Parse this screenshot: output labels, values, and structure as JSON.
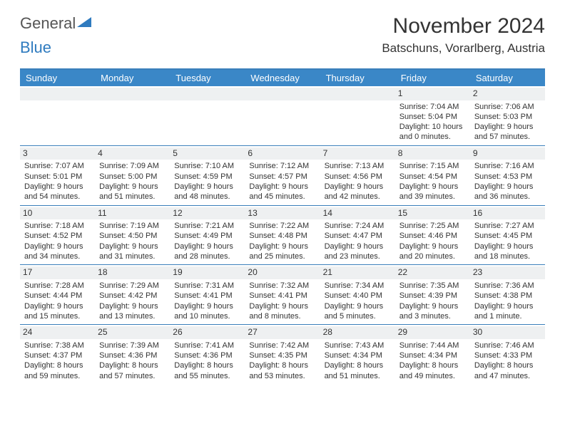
{
  "brand": {
    "part1": "General",
    "part2": "Blue"
  },
  "title": "November 2024",
  "location": "Batschuns, Vorarlberg, Austria",
  "colors": {
    "header_bg": "#3a87c7",
    "border": "#3a7fba",
    "numbar_bg": "#eef0f1",
    "text": "#333333",
    "brand_blue": "#2f7bbf"
  },
  "fonts": {
    "title_size": 30,
    "location_size": 17,
    "dayhead_size": 13,
    "cell_size": 11
  },
  "day_names": [
    "Sunday",
    "Monday",
    "Tuesday",
    "Wednesday",
    "Thursday",
    "Friday",
    "Saturday"
  ],
  "weeks": [
    [
      null,
      null,
      null,
      null,
      null,
      {
        "n": "1",
        "sunrise": "Sunrise: 7:04 AM",
        "sunset": "Sunset: 5:04 PM",
        "daylight": "Daylight: 10 hours and 0 minutes."
      },
      {
        "n": "2",
        "sunrise": "Sunrise: 7:06 AM",
        "sunset": "Sunset: 5:03 PM",
        "daylight": "Daylight: 9 hours and 57 minutes."
      }
    ],
    [
      {
        "n": "3",
        "sunrise": "Sunrise: 7:07 AM",
        "sunset": "Sunset: 5:01 PM",
        "daylight": "Daylight: 9 hours and 54 minutes."
      },
      {
        "n": "4",
        "sunrise": "Sunrise: 7:09 AM",
        "sunset": "Sunset: 5:00 PM",
        "daylight": "Daylight: 9 hours and 51 minutes."
      },
      {
        "n": "5",
        "sunrise": "Sunrise: 7:10 AM",
        "sunset": "Sunset: 4:59 PM",
        "daylight": "Daylight: 9 hours and 48 minutes."
      },
      {
        "n": "6",
        "sunrise": "Sunrise: 7:12 AM",
        "sunset": "Sunset: 4:57 PM",
        "daylight": "Daylight: 9 hours and 45 minutes."
      },
      {
        "n": "7",
        "sunrise": "Sunrise: 7:13 AM",
        "sunset": "Sunset: 4:56 PM",
        "daylight": "Daylight: 9 hours and 42 minutes."
      },
      {
        "n": "8",
        "sunrise": "Sunrise: 7:15 AM",
        "sunset": "Sunset: 4:54 PM",
        "daylight": "Daylight: 9 hours and 39 minutes."
      },
      {
        "n": "9",
        "sunrise": "Sunrise: 7:16 AM",
        "sunset": "Sunset: 4:53 PM",
        "daylight": "Daylight: 9 hours and 36 minutes."
      }
    ],
    [
      {
        "n": "10",
        "sunrise": "Sunrise: 7:18 AM",
        "sunset": "Sunset: 4:52 PM",
        "daylight": "Daylight: 9 hours and 34 minutes."
      },
      {
        "n": "11",
        "sunrise": "Sunrise: 7:19 AM",
        "sunset": "Sunset: 4:50 PM",
        "daylight": "Daylight: 9 hours and 31 minutes."
      },
      {
        "n": "12",
        "sunrise": "Sunrise: 7:21 AM",
        "sunset": "Sunset: 4:49 PM",
        "daylight": "Daylight: 9 hours and 28 minutes."
      },
      {
        "n": "13",
        "sunrise": "Sunrise: 7:22 AM",
        "sunset": "Sunset: 4:48 PM",
        "daylight": "Daylight: 9 hours and 25 minutes."
      },
      {
        "n": "14",
        "sunrise": "Sunrise: 7:24 AM",
        "sunset": "Sunset: 4:47 PM",
        "daylight": "Daylight: 9 hours and 23 minutes."
      },
      {
        "n": "15",
        "sunrise": "Sunrise: 7:25 AM",
        "sunset": "Sunset: 4:46 PM",
        "daylight": "Daylight: 9 hours and 20 minutes."
      },
      {
        "n": "16",
        "sunrise": "Sunrise: 7:27 AM",
        "sunset": "Sunset: 4:45 PM",
        "daylight": "Daylight: 9 hours and 18 minutes."
      }
    ],
    [
      {
        "n": "17",
        "sunrise": "Sunrise: 7:28 AM",
        "sunset": "Sunset: 4:44 PM",
        "daylight": "Daylight: 9 hours and 15 minutes."
      },
      {
        "n": "18",
        "sunrise": "Sunrise: 7:29 AM",
        "sunset": "Sunset: 4:42 PM",
        "daylight": "Daylight: 9 hours and 13 minutes."
      },
      {
        "n": "19",
        "sunrise": "Sunrise: 7:31 AM",
        "sunset": "Sunset: 4:41 PM",
        "daylight": "Daylight: 9 hours and 10 minutes."
      },
      {
        "n": "20",
        "sunrise": "Sunrise: 7:32 AM",
        "sunset": "Sunset: 4:41 PM",
        "daylight": "Daylight: 9 hours and 8 minutes."
      },
      {
        "n": "21",
        "sunrise": "Sunrise: 7:34 AM",
        "sunset": "Sunset: 4:40 PM",
        "daylight": "Daylight: 9 hours and 5 minutes."
      },
      {
        "n": "22",
        "sunrise": "Sunrise: 7:35 AM",
        "sunset": "Sunset: 4:39 PM",
        "daylight": "Daylight: 9 hours and 3 minutes."
      },
      {
        "n": "23",
        "sunrise": "Sunrise: 7:36 AM",
        "sunset": "Sunset: 4:38 PM",
        "daylight": "Daylight: 9 hours and 1 minute."
      }
    ],
    [
      {
        "n": "24",
        "sunrise": "Sunrise: 7:38 AM",
        "sunset": "Sunset: 4:37 PM",
        "daylight": "Daylight: 8 hours and 59 minutes."
      },
      {
        "n": "25",
        "sunrise": "Sunrise: 7:39 AM",
        "sunset": "Sunset: 4:36 PM",
        "daylight": "Daylight: 8 hours and 57 minutes."
      },
      {
        "n": "26",
        "sunrise": "Sunrise: 7:41 AM",
        "sunset": "Sunset: 4:36 PM",
        "daylight": "Daylight: 8 hours and 55 minutes."
      },
      {
        "n": "27",
        "sunrise": "Sunrise: 7:42 AM",
        "sunset": "Sunset: 4:35 PM",
        "daylight": "Daylight: 8 hours and 53 minutes."
      },
      {
        "n": "28",
        "sunrise": "Sunrise: 7:43 AM",
        "sunset": "Sunset: 4:34 PM",
        "daylight": "Daylight: 8 hours and 51 minutes."
      },
      {
        "n": "29",
        "sunrise": "Sunrise: 7:44 AM",
        "sunset": "Sunset: 4:34 PM",
        "daylight": "Daylight: 8 hours and 49 minutes."
      },
      {
        "n": "30",
        "sunrise": "Sunrise: 7:46 AM",
        "sunset": "Sunset: 4:33 PM",
        "daylight": "Daylight: 8 hours and 47 minutes."
      }
    ]
  ]
}
